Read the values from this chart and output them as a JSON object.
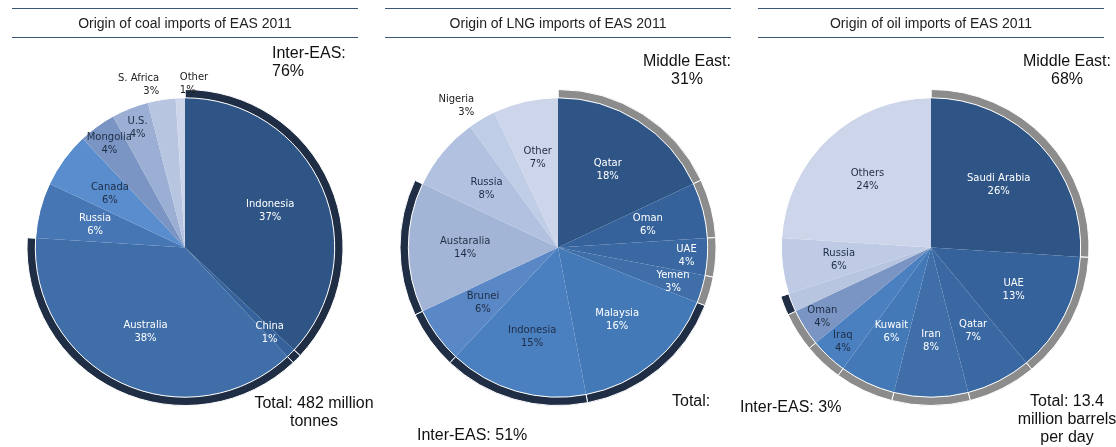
{
  "chart_data": [
    {
      "type": "pie",
      "title": "Origin of coal imports of EAS 2011",
      "legend": false,
      "categories": [
        "Indonesia",
        "China",
        "Australia",
        "Russia",
        "Canada",
        "Mongolia",
        "U.S.",
        "S. Africa",
        "Other"
      ],
      "series": [
        {
          "values": [
            37,
            1,
            38,
            6,
            6,
            4,
            4,
            3,
            1
          ],
          "colors": [
            "#2f5587",
            "#35629a",
            "#3f6ea8",
            "#4676b4",
            "#5a8dcd",
            "#7a95c3",
            "#9aafd3",
            "#b7c5e1",
            "#cdd5ea"
          ],
          "value_labels": [
            "37%",
            "1%",
            "38%",
            "6%",
            "6%",
            "4%",
            "4%",
            "3%",
            "1%"
          ]
        },
        {
          "type": "donut",
          "values": [
            37,
            1,
            38,
            6,
            6,
            4,
            4,
            3,
            1
          ],
          "colors": [
            "#1f2d45",
            "#1f2d45",
            "#1f2d45",
            "#ffffff",
            "#ffffff",
            "#ffffff",
            "#ffffff",
            "#ffffff",
            "#ffffff"
          ]
        }
      ],
      "annotations": [
        "Inter-EAS: 76%",
        "Total: 482 million tonnes"
      ]
    },
    {
      "type": "pie",
      "title": "Origin of LNG imports of EAS 2011",
      "legend": false,
      "categories": [
        "Qatar",
        "Oman",
        "UAE",
        "Yemen",
        "Malaysia",
        "Indonesia",
        "Brunei",
        "Austaralia",
        "Russia",
        "Nigeria",
        "Other"
      ],
      "series": [
        {
          "values": [
            18,
            6,
            4,
            3,
            16,
            15,
            6,
            14,
            8,
            3,
            7
          ],
          "colors": [
            "#2f5587",
            "#35629a",
            "#3a68a2",
            "#3f6ea8",
            "#4479b8",
            "#4a7fc0",
            "#5a88c6",
            "#a3b5d6",
            "#b1c1df",
            "#c0cde6",
            "#cdd5ea"
          ],
          "value_labels": [
            "18%",
            "6%",
            "4%",
            "3%",
            "16%",
            "15%",
            "6%",
            "14%",
            "8%",
            "3%",
            "7%"
          ]
        },
        {
          "type": "donut",
          "values": [
            18,
            6,
            4,
            3,
            16,
            15,
            6,
            14,
            8,
            3,
            7
          ],
          "colors": [
            "#8c8c8c",
            "#8c8c8c",
            "#8c8c8c",
            "#8c8c8c",
            "#1f2d45",
            "#1f2d45",
            "#1f2d45",
            "#1f2d45",
            "#ffffff",
            "#ffffff",
            "#ffffff"
          ]
        }
      ],
      "annotations": [
        "Middle East: 31%",
        "Inter-EAS: 51%",
        "Total:"
      ]
    },
    {
      "type": "pie",
      "title": "Origin of oil imports of EAS 2011",
      "legend": false,
      "categories": [
        "Saudi Arabia",
        "UAE",
        "Qatar",
        "Iran",
        "Kuwait",
        "Iraq",
        "Oman",
        null,
        "Russia",
        "Others"
      ],
      "series": [
        {
          "values": [
            26,
            13,
            7,
            8,
            6,
            4,
            4,
            2,
            6,
            24
          ],
          "colors": [
            "#2f5587",
            "#35629a",
            "#3a68a2",
            "#3f6ea8",
            "#4479b8",
            "#4a7fc0",
            "#7a95c3",
            "#b7c5e1",
            "#bfcbe4",
            "#cdd5ea"
          ],
          "value_labels": [
            "26%",
            "13%",
            "7%",
            "8%",
            "6%",
            "4%",
            "4%",
            null,
            "6%",
            "24%"
          ]
        },
        {
          "type": "donut",
          "values": [
            26,
            13,
            7,
            8,
            6,
            4,
            4,
            2,
            6,
            24
          ],
          "colors": [
            "#8c8c8c",
            "#8c8c8c",
            "#8c8c8c",
            "#8c8c8c",
            "#8c8c8c",
            "#8c8c8c",
            "#8c8c8c",
            "#1f2d45",
            "#ffffff",
            "#ffffff"
          ]
        }
      ],
      "annotations": [
        "Middle East: 68%",
        "Inter-EAS: 3%",
        "Total: 13.4 million barrels per day"
      ]
    }
  ]
}
